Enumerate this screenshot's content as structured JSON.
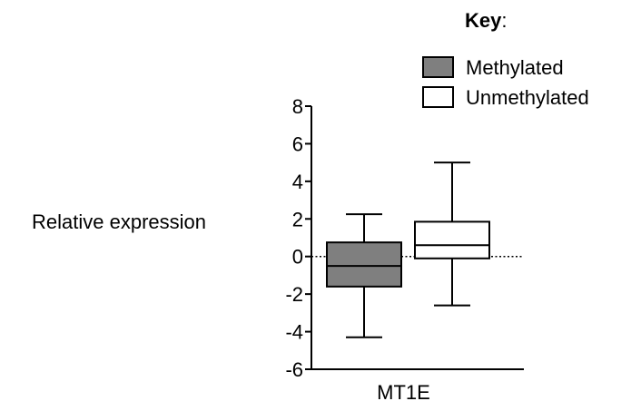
{
  "chart_data": {
    "type": "box",
    "key_title": "Key",
    "key_colon": ":",
    "ylabel": "Relative expression",
    "xlabel": "",
    "categories": [
      "MT1E"
    ],
    "ylim": [
      -6,
      8
    ],
    "yticks": [
      8,
      6,
      4,
      2,
      0,
      -2,
      -4,
      -6
    ],
    "reference_line": {
      "y": 0,
      "style": "dotted"
    },
    "series": [
      {
        "name": "Methylated",
        "fill": "#7f7f7f",
        "min": -4.3,
        "q1": -1.6,
        "median": -0.5,
        "q3": 0.75,
        "max": 2.25
      },
      {
        "name": "Unmethylated",
        "fill": "#ffffff",
        "min": -2.6,
        "q1": -0.1,
        "median": 0.6,
        "q3": 1.85,
        "max": 5.0
      }
    ]
  }
}
